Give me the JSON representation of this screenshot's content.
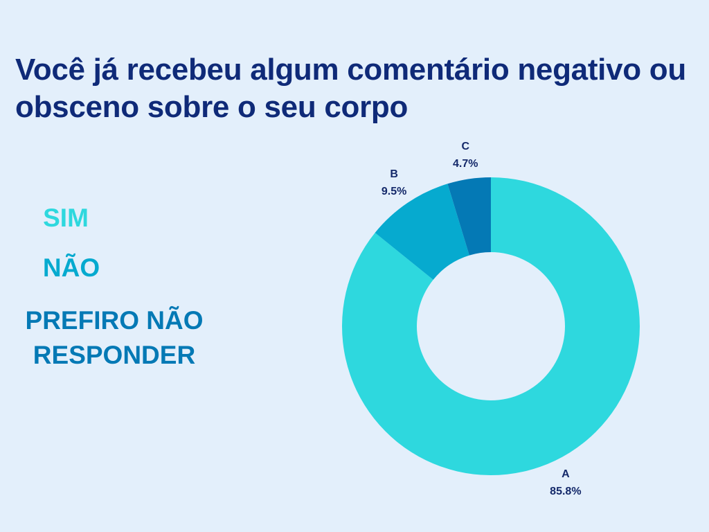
{
  "chart_data": {
    "type": "pie",
    "donut": true,
    "title": "Você já recebeu algum comentário negativo ou obsceno sobre o seu corpo",
    "categories": [
      "A",
      "B",
      "C"
    ],
    "values": [
      85.8,
      9.5,
      4.7
    ],
    "value_labels": [
      "85.8%",
      "9.5%",
      "4.7%"
    ],
    "colors": [
      "#2ed8de",
      "#06aacf",
      "#0479b5"
    ],
    "legend": [
      "SIM",
      "NÃO",
      "PREFIRO NÃO RESPONDER"
    ]
  }
}
